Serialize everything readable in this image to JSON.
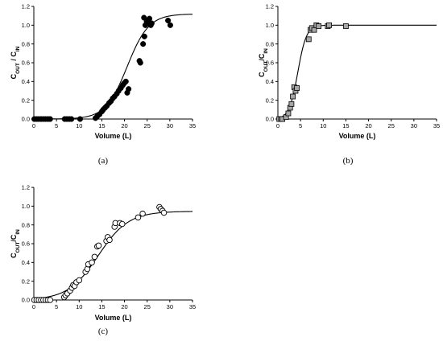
{
  "chart_data": [
    {
      "type": "scatter",
      "panel_label": "(a)",
      "xlabel": "Volume (L)",
      "ylabel": "C",
      "ylabel_sub_out": "OUT",
      "ylabel_mid": " / C",
      "ylabel_sub_in": "IN",
      "xlim": [
        0,
        35
      ],
      "ylim": [
        0,
        1.2
      ],
      "xticks": [
        "0",
        "5",
        "10",
        "15",
        "20",
        "25",
        "30",
        "35"
      ],
      "yticks": [
        "0.0",
        "0.2",
        "0.4",
        "0.6",
        "0.8",
        "1.0",
        "1.2"
      ],
      "marker": "filled-circle",
      "marker_color": "#000000",
      "points": [
        [
          0.1,
          0.0
        ],
        [
          0.6,
          0.0
        ],
        [
          1.1,
          0.0
        ],
        [
          1.6,
          0.0
        ],
        [
          2.1,
          0.0
        ],
        [
          2.6,
          0.0
        ],
        [
          3.1,
          0.0
        ],
        [
          3.6,
          0.0
        ],
        [
          6.8,
          0.0
        ],
        [
          7.3,
          0.0
        ],
        [
          7.8,
          0.0
        ],
        [
          8.3,
          0.0
        ],
        [
          10.2,
          0.0
        ],
        [
          13.6,
          0.01
        ],
        [
          14.0,
          0.03
        ],
        [
          14.5,
          0.05
        ],
        [
          15.0,
          0.08
        ],
        [
          15.3,
          0.1
        ],
        [
          15.7,
          0.12
        ],
        [
          16.1,
          0.14
        ],
        [
          16.6,
          0.17
        ],
        [
          17.0,
          0.19
        ],
        [
          17.4,
          0.22
        ],
        [
          17.8,
          0.24
        ],
        [
          18.3,
          0.27
        ],
        [
          18.7,
          0.3
        ],
        [
          19.2,
          0.33
        ],
        [
          19.6,
          0.36
        ],
        [
          19.9,
          0.38
        ],
        [
          20.3,
          0.4
        ],
        [
          20.6,
          0.28
        ],
        [
          20.9,
          0.32
        ],
        [
          23.3,
          0.62
        ],
        [
          23.5,
          0.6
        ],
        [
          24.1,
          0.8
        ],
        [
          24.4,
          0.88
        ],
        [
          24.3,
          1.08
        ],
        [
          24.6,
          1.0
        ],
        [
          24.9,
          1.04
        ],
        [
          25.2,
          1.02
        ],
        [
          25.5,
          1.07
        ],
        [
          25.8,
          1.0
        ],
        [
          26.0,
          1.02
        ],
        [
          29.6,
          1.05
        ],
        [
          30.1,
          1.0
        ]
      ],
      "fit_line_color": "#000000"
    },
    {
      "type": "scatter",
      "panel_label": "(b)",
      "xlabel": "Volume (L)",
      "ylabel": "C",
      "ylabel_sub_out": "OUT",
      "ylabel_mid": "/C",
      "ylabel_sub_in": "IN",
      "xlim": [
        0,
        35
      ],
      "ylim": [
        0,
        1.2
      ],
      "xticks": [
        "0",
        "5",
        "10",
        "15",
        "20",
        "25",
        "30",
        "35"
      ],
      "yticks": [
        "0.0",
        "0.2",
        "0.4",
        "0.6",
        "0.8",
        "1.0",
        "1.2"
      ],
      "marker": "grey-square",
      "marker_color": "#a6a6a6",
      "points": [
        [
          0.3,
          0.0
        ],
        [
          0.7,
          0.0
        ],
        [
          1.0,
          0.0
        ],
        [
          1.8,
          0.02
        ],
        [
          2.3,
          0.06
        ],
        [
          2.7,
          0.12
        ],
        [
          3.0,
          0.16
        ],
        [
          3.3,
          0.24
        ],
        [
          3.6,
          0.34
        ],
        [
          3.9,
          0.3
        ],
        [
          4.2,
          0.33
        ],
        [
          6.8,
          0.85
        ],
        [
          7.2,
          0.95
        ],
        [
          7.5,
          0.97
        ],
        [
          8.0,
          0.95
        ],
        [
          8.5,
          1.0
        ],
        [
          9.0,
          0.99
        ],
        [
          11.0,
          0.99
        ],
        [
          11.3,
          1.0
        ],
        [
          15.0,
          0.99
        ]
      ],
      "fit_line_color": "#000000"
    },
    {
      "type": "scatter",
      "panel_label": "(c)",
      "xlabel": "Volume (L)",
      "ylabel": "C",
      "ylabel_sub_out": "OUT",
      "ylabel_mid": "/C",
      "ylabel_sub_in": "IN",
      "xlim": [
        0,
        35
      ],
      "ylim": [
        0,
        1.2
      ],
      "xticks": [
        "0",
        "5",
        "10",
        "15",
        "20",
        "25",
        "30",
        "35"
      ],
      "yticks": [
        "0.0",
        "0.2",
        "0.4",
        "0.6",
        "0.8",
        "1.0",
        "1.2"
      ],
      "marker": "open-circle",
      "marker_color": "#000000",
      "points": [
        [
          0.1,
          0.0
        ],
        [
          0.6,
          0.0
        ],
        [
          1.1,
          0.0
        ],
        [
          1.6,
          0.0
        ],
        [
          2.1,
          0.0
        ],
        [
          2.6,
          0.0
        ],
        [
          3.1,
          0.0
        ],
        [
          3.6,
          0.0
        ],
        [
          6.7,
          0.03
        ],
        [
          7.0,
          0.05
        ],
        [
          7.4,
          0.07
        ],
        [
          8.0,
          0.1
        ],
        [
          8.4,
          0.13
        ],
        [
          8.7,
          0.16
        ],
        [
          9.0,
          0.15
        ],
        [
          9.4,
          0.19
        ],
        [
          10.0,
          0.21
        ],
        [
          11.4,
          0.3
        ],
        [
          11.8,
          0.33
        ],
        [
          12.0,
          0.38
        ],
        [
          12.8,
          0.4
        ],
        [
          13.4,
          0.46
        ],
        [
          14.0,
          0.57
        ],
        [
          14.3,
          0.58
        ],
        [
          16.0,
          0.63
        ],
        [
          16.3,
          0.67
        ],
        [
          16.7,
          0.64
        ],
        [
          17.8,
          0.78
        ],
        [
          18.0,
          0.82
        ],
        [
          19.0,
          0.82
        ],
        [
          19.5,
          0.81
        ],
        [
          23.0,
          0.88
        ],
        [
          24.0,
          0.92
        ],
        [
          27.7,
          0.99
        ],
        [
          28.0,
          0.97
        ],
        [
          28.4,
          0.95
        ],
        [
          28.7,
          0.93
        ]
      ],
      "fit_line_color": "#000000"
    }
  ]
}
